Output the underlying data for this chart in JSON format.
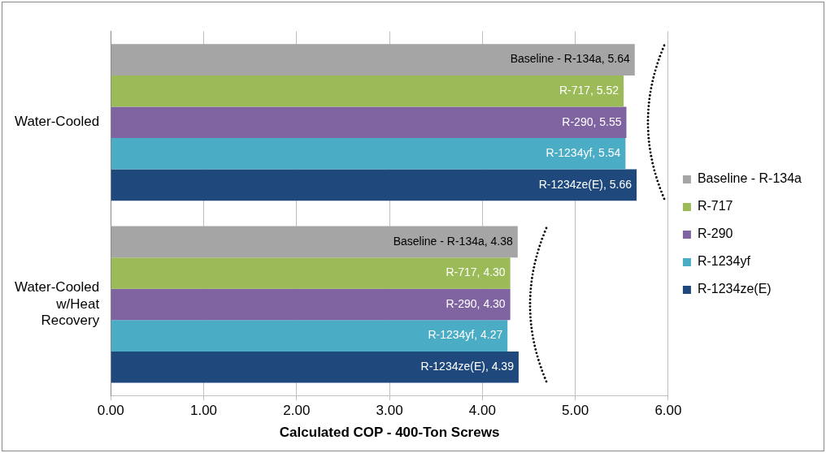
{
  "chart_data": {
    "type": "bar",
    "orientation": "horizontal",
    "xlabel": "Calculated COP - 400-Ton Screws",
    "categories": [
      "Water-Cooled",
      "Water-Cooled w/Heat Recovery"
    ],
    "series": [
      {
        "name": "Baseline - R-134a",
        "color": "#a5a5a5",
        "values": [
          5.64,
          4.38
        ],
        "value_labels": [
          "Baseline - R-134a, 5.64",
          "Baseline - R-134a, 4.38"
        ]
      },
      {
        "name": "R-717",
        "color": "#9bbb59",
        "values": [
          5.52,
          4.3
        ],
        "value_labels": [
          "R-717, 5.52",
          "R-717, 4.30"
        ]
      },
      {
        "name": "R-290",
        "color": "#8064a2",
        "values": [
          5.55,
          4.3
        ],
        "value_labels": [
          "R-290, 5.55",
          "R-290, 4.30"
        ]
      },
      {
        "name": "R-1234yf",
        "color": "#4bacc6",
        "values": [
          5.54,
          4.27
        ],
        "value_labels": [
          "R-1234yf, 5.54",
          "R-1234yf, 4.27"
        ]
      },
      {
        "name": "R-1234ze(E)",
        "color": "#1f497d",
        "values": [
          5.66,
          4.39
        ],
        "value_labels": [
          "R-1234ze(E), 5.66",
          "R-1234ze(E), 4.39"
        ]
      }
    ],
    "xlim": [
      0,
      6
    ],
    "xticks": [
      {
        "value": 0,
        "label": "0.00"
      },
      {
        "value": 1,
        "label": "1.00"
      },
      {
        "value": 2,
        "label": "2.00"
      },
      {
        "value": 3,
        "label": "3.00"
      },
      {
        "value": 4,
        "label": "4.00"
      },
      {
        "value": 5,
        "label": "5.00"
      },
      {
        "value": 6,
        "label": "6.00"
      }
    ],
    "grid": "x",
    "legend": "right"
  }
}
